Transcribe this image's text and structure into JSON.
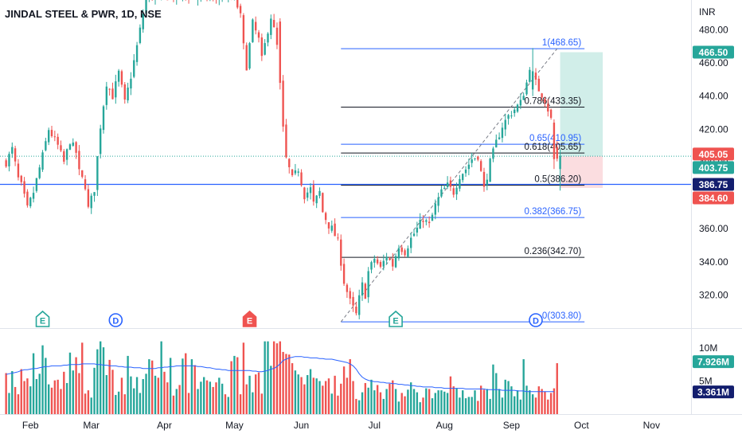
{
  "header": {
    "title": "JINDAL STEEL & PWR, 1D, NSE"
  },
  "colors": {
    "up": "#26a69a",
    "down": "#ef5350",
    "fib_blue": "#2962ff",
    "fib_black": "#131722",
    "volume_ma": "#2962ff",
    "target_zone": "#d1eee9",
    "stop_zone": "#fbdde0"
  },
  "chart_data": [
    {
      "type": "candlestick",
      "title": "JINDAL STEEL & PWR, 1D, NSE",
      "currency_label": "INR",
      "ylim": [
        300,
        498
      ],
      "y_ticks": [
        320,
        340,
        360,
        380,
        400,
        420,
        440,
        460,
        480
      ],
      "y_tick_labels": [
        "320.00",
        "340.00",
        "360.00",
        "380.00",
        "400.00",
        "420.00",
        "440.00",
        "460.00",
        "480.00"
      ],
      "x_labels": [
        "Feb",
        "Mar",
        "Apr",
        "May",
        "Jun",
        "Jul",
        "Aug",
        "Sep",
        "Oct",
        "Nov"
      ],
      "x_label_index": [
        8,
        28,
        52,
        75,
        97,
        121,
        144,
        166,
        189,
        212
      ],
      "x_range": [
        -2,
        225
      ],
      "anchors": [
        [
          0,
          400
        ],
        [
          2,
          408
        ],
        [
          4,
          390
        ],
        [
          5,
          386
        ],
        [
          7,
          372
        ],
        [
          9,
          382
        ],
        [
          12,
          404
        ],
        [
          14,
          420
        ],
        [
          17,
          410
        ],
        [
          19,
          400
        ],
        [
          21,
          413
        ],
        [
          23,
          406
        ],
        [
          24,
          394
        ],
        [
          26,
          386
        ],
        [
          27,
          372
        ],
        [
          29,
          384
        ],
        [
          31,
          422
        ],
        [
          33,
          448
        ],
        [
          35,
          440
        ],
        [
          37,
          454
        ],
        [
          39,
          436
        ],
        [
          41,
          452
        ],
        [
          43,
          470
        ],
        [
          45,
          490
        ],
        [
          46,
          500
        ],
        [
          75,
          500
        ],
        [
          77,
          488
        ],
        [
          78,
          470
        ],
        [
          79,
          458
        ],
        [
          81,
          484
        ],
        [
          83,
          474
        ],
        [
          84,
          462
        ],
        [
          86,
          480
        ],
        [
          87,
          488
        ],
        [
          88,
          480
        ],
        [
          89,
          470
        ],
        [
          90,
          448
        ],
        [
          91,
          420
        ],
        [
          92,
          402
        ],
        [
          94,
          390
        ],
        [
          96,
          396
        ],
        [
          98,
          380
        ],
        [
          100,
          384
        ],
        [
          101,
          375
        ],
        [
          103,
          382
        ],
        [
          104,
          370
        ],
        [
          106,
          362
        ],
        [
          107,
          360
        ],
        [
          109,
          352
        ],
        [
          110,
          340
        ],
        [
          111,
          328
        ],
        [
          112,
          322
        ],
        [
          113,
          316
        ],
        [
          114,
          312
        ],
        [
          115,
          308
        ],
        [
          116,
          318
        ],
        [
          117,
          326
        ],
        [
          118,
          320
        ],
        [
          119,
          334
        ],
        [
          121,
          342
        ],
        [
          123,
          336
        ],
        [
          125,
          344
        ],
        [
          127,
          338
        ],
        [
          129,
          350
        ],
        [
          131,
          346
        ],
        [
          133,
          354
        ],
        [
          135,
          360
        ],
        [
          137,
          366
        ],
        [
          139,
          362
        ],
        [
          141,
          374
        ],
        [
          143,
          382
        ],
        [
          145,
          386
        ],
        [
          147,
          382
        ],
        [
          149,
          392
        ],
        [
          151,
          396
        ],
        [
          153,
          402
        ],
        [
          155,
          404
        ],
        [
          157,
          384
        ],
        [
          159,
          400
        ],
        [
          161,
          412
        ],
        [
          163,
          422
        ],
        [
          165,
          428
        ],
        [
          167,
          432
        ],
        [
          169,
          436
        ],
        [
          171,
          448
        ],
        [
          172,
          458
        ],
        [
          173,
          452
        ],
        [
          175,
          444
        ],
        [
          177,
          438
        ],
        [
          179,
          426
        ],
        [
          180,
          408
        ],
        [
          181,
          402
        ],
        [
          182,
          404
        ]
      ],
      "special_candles": [
        {
          "i": 90,
          "o": 485,
          "h": 487,
          "l": 444,
          "c": 448
        },
        {
          "i": 173,
          "o": 444,
          "h": 469,
          "l": 440,
          "c": 455
        },
        {
          "i": 180,
          "o": 424,
          "h": 426,
          "l": 396,
          "c": 402
        },
        {
          "i": 182,
          "o": 396,
          "h": 408,
          "l": 383,
          "c": 404
        }
      ],
      "price_markers": [
        {
          "value": 466.5,
          "label": "466.50",
          "style": "up"
        },
        {
          "value": 405.05,
          "label": "405.05",
          "style": "down"
        },
        {
          "value": 403.75,
          "label": "403.75",
          "style": "up"
        },
        {
          "value": 386.75,
          "label": "386.75",
          "style": "navy"
        },
        {
          "value": 384.6,
          "label": "384.60",
          "style": "down"
        }
      ],
      "horizontal_ray": {
        "value": 386.75
      },
      "dotted_last_price": {
        "value": 403.75
      },
      "fibonacci": {
        "start_index": 110,
        "end_index": 190,
        "levels": [
          {
            "value": 468.65,
            "label": "1(468.65)",
            "color": "blue"
          },
          {
            "value": 433.35,
            "label": "0.786(433.35)",
            "color": "black"
          },
          {
            "value": 410.95,
            "label": "0.65(410.95)",
            "color": "blue"
          },
          {
            "value": 405.65,
            "label": "0.618(405.65)",
            "color": "black"
          },
          {
            "value": 386.2,
            "label": "0.5(386.20)",
            "color": "black"
          },
          {
            "value": 366.75,
            "label": "0.382(366.75)",
            "color": "blue"
          },
          {
            "value": 342.7,
            "label": "0.236(342.70)",
            "color": "black"
          },
          {
            "value": 303.8,
            "label": "0(303.80)",
            "color": "blue"
          }
        ],
        "trend_line": {
          "from": [
            110,
            303.8
          ],
          "to": [
            181,
            468.65
          ]
        }
      },
      "position_tool": {
        "start_index": 182,
        "end_index": 196,
        "entry": 403.75,
        "target": 466.5,
        "stop": 384.6
      }
    },
    {
      "type": "bar",
      "name": "volume",
      "y_ticks": [
        5,
        10
      ],
      "y_tick_labels": [
        "5M",
        "10M"
      ],
      "ylim": [
        0,
        13
      ],
      "values": [
        6.2,
        3.2,
        6.5,
        4.1,
        3.0,
        6.8,
        5.0,
        5.4,
        4.2,
        9.2,
        5.3,
        6.1,
        10.4,
        8.5,
        4.5,
        4.0,
        5.1,
        5.2,
        3.8,
        6.4,
        4.7,
        9.3,
        6.6,
        8.6,
        6.2,
        10.8,
        3.1,
        3.6,
        2.5,
        7.0,
        9.8,
        11.0,
        10.1,
        5.9,
        8.2,
        6.7,
        2.9,
        3.4,
        5.5,
        3.0,
        8.8,
        5.7,
        3.9,
        5.6,
        3.2,
        5.3,
        6.1,
        8.3,
        8.1,
        5.8,
        5.5,
        11.0,
        6.4,
        4.8,
        8.5,
        2.8,
        3.8,
        4.4,
        8.4,
        9.2,
        3.2,
        8.3,
        7.4,
        3.8,
        4.9,
        5.6,
        5.1,
        4.9,
        4.1,
        4.8,
        5.5,
        4.6,
        3.0,
        2.6,
        8.0,
        8.8,
        8.6,
        3.0,
        10.8,
        4.5,
        5.8,
        3.3,
        6.0,
        6.3,
        3.1,
        11.0,
        11.0,
        7.3,
        11.0,
        10.7,
        11.0,
        9.4,
        9.1,
        9.0,
        7.7,
        6.6,
        6.0,
        5.6,
        4.5,
        5.9,
        6.8,
        5.5,
        5.4,
        5.0,
        4.3,
        5.0,
        5.4,
        3.1,
        5.8,
        2.8,
        4.6,
        7.2,
        5.5,
        8.3,
        5.0,
        2.3,
        2.1,
        3.3,
        4.7,
        4.0,
        5.2,
        3.6,
        4.4,
        3.3,
        2.3,
        3.8,
        4.6,
        5.1,
        3.8,
        1.9,
        3.2,
        2.7,
        3.7,
        4.8,
        3.8,
        3.3,
        1.8,
        2.5,
        3.9,
        3.8,
        2.4,
        3.2,
        3.6,
        3.6,
        3.4,
        3.2,
        5.7,
        4.2,
        3.9,
        2.5,
        3.6,
        2.4,
        2.6,
        2.6,
        3.6,
        2.0,
        4.3,
        3.7,
        3.8,
        2.3,
        7.5,
        6.2,
        3.8,
        2.5,
        5.2,
        5.0,
        4.2,
        2.7,
        3.6,
        2.2,
        8.3,
        4.3,
        3.6,
        3.0,
        2.5,
        4.2,
        3.8,
        3.4,
        2.2,
        3.2,
        3.9,
        7.7
      ],
      "ma_values": [
        6.0,
        6.1,
        6.2,
        6.3,
        6.4,
        6.6,
        6.7,
        6.7,
        6.8,
        6.9,
        6.9,
        7.0,
        7.1,
        7.2,
        7.2,
        7.3,
        7.3,
        7.3,
        7.3,
        7.4,
        7.4,
        7.5,
        7.5,
        7.5,
        7.5,
        7.6,
        7.6,
        7.6,
        7.6,
        7.6,
        7.5,
        7.5,
        7.4,
        7.4,
        7.3,
        7.3,
        7.3,
        7.2,
        7.2,
        7.1,
        7.1,
        7.1,
        7.0,
        7.0,
        7.0,
        6.9,
        6.9,
        6.9,
        6.9,
        6.9,
        7.0,
        7.0,
        7.1,
        7.1,
        7.2,
        7.2,
        7.3,
        7.3,
        7.3,
        7.3,
        7.3,
        7.3,
        7.3,
        7.2,
        7.2,
        7.1,
        7.0,
        7.0,
        6.9,
        6.8,
        6.8,
        6.7,
        6.7,
        6.6,
        6.6,
        6.6,
        6.6,
        6.6,
        6.6,
        6.6,
        6.6,
        6.5,
        6.5,
        6.4,
        6.4,
        6.5,
        6.6,
        6.8,
        6.9,
        7.2,
        7.6,
        8.1,
        8.3,
        8.5,
        8.6,
        8.7,
        8.7,
        8.7,
        8.6,
        8.6,
        8.5,
        8.5,
        8.5,
        8.4,
        8.4,
        8.3,
        8.3,
        8.3,
        8.2,
        8.1,
        8.0,
        7.9,
        7.8,
        7.6,
        7.3,
        6.8,
        6.1,
        5.6,
        5.3,
        5.1,
        5.0,
        4.9,
        4.9,
        4.8,
        4.8,
        4.7,
        4.7,
        4.6,
        4.6,
        4.5,
        4.5,
        4.4,
        4.4,
        4.3,
        4.3,
        4.2,
        4.2,
        4.1,
        4.1,
        4.1,
        4.1,
        4.0,
        4.0,
        4.0,
        3.9,
        3.9,
        3.9,
        3.9,
        3.9,
        3.9,
        3.9,
        3.8,
        3.8,
        3.8,
        3.8,
        3.8,
        3.8,
        3.8,
        3.7,
        3.7,
        3.7,
        3.7,
        3.7,
        3.6,
        3.6,
        3.6,
        3.6,
        3.6,
        3.5,
        3.5,
        3.5,
        3.4,
        3.4,
        3.4,
        3.4,
        3.4,
        3.4,
        3.4,
        3.4,
        3.4,
        3.4
      ],
      "markers": [
        {
          "value": 7.926,
          "label": "7.926M",
          "style": "up"
        },
        {
          "value": 3.361,
          "label": "3.361M",
          "style": "navy"
        }
      ]
    }
  ],
  "events": [
    {
      "index": 12,
      "letter": "E",
      "kind": "earnings"
    },
    {
      "index": 36,
      "letter": "D",
      "kind": "dividend"
    },
    {
      "index": 80,
      "letter": "E",
      "kind": "earnings-negative"
    },
    {
      "index": 128,
      "letter": "E",
      "kind": "earnings"
    },
    {
      "index": 174,
      "letter": "D",
      "kind": "dividend"
    }
  ]
}
